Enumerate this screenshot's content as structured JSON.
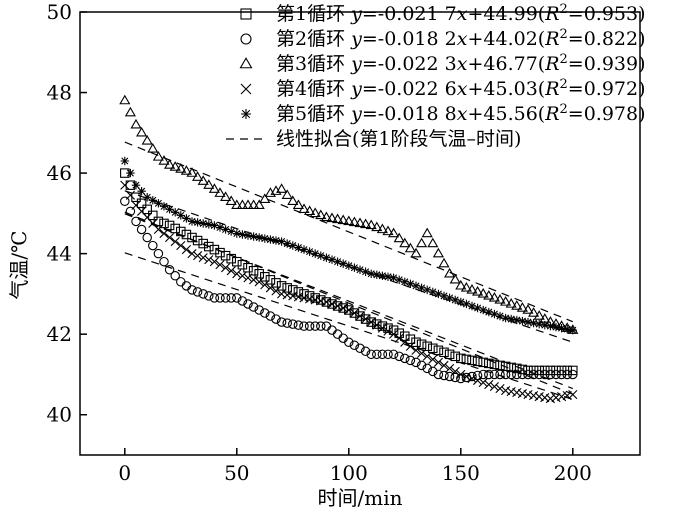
{
  "chart_data": {
    "type": "scatter",
    "xlabel": "时间/min",
    "ylabel": "气温/℃",
    "xlim": [
      -20,
      230
    ],
    "ylim": [
      39,
      50
    ],
    "xticks": [
      0,
      50,
      100,
      150,
      200
    ],
    "yticks": [
      40,
      42,
      44,
      46,
      48,
      50
    ],
    "grid": false,
    "legend_position": "top-right",
    "series": [
      {
        "name": "第1循环",
        "marker": "square",
        "equation": "y=-0.021 7x+44.99",
        "r2": "0.953",
        "slope": -0.0217,
        "intercept": 44.99
      },
      {
        "name": "第2循环",
        "marker": "circle",
        "equation": "y=-0.018 2x+44.02",
        "r2": "0.822",
        "slope": -0.0182,
        "intercept": 44.02
      },
      {
        "name": "第3循环",
        "marker": "triangle",
        "equation": "y=-0.022 3x+46.77",
        "r2": "0.939",
        "slope": -0.0223,
        "intercept": 46.77
      },
      {
        "name": "第4循环",
        "marker": "cross",
        "equation": "y=-0.022 6x+45.03",
        "r2": "0.972",
        "slope": -0.0226,
        "intercept": 45.03
      },
      {
        "name": "第5循环",
        "marker": "asterisk",
        "equation": "y=-0.018 8x+45.56",
        "r2": "0.978",
        "slope": -0.0188,
        "intercept": 45.56
      }
    ],
    "fit_line": {
      "name": "线性拟合(第1阶段气温–时间)",
      "style": "dashed",
      "x_range": [
        0,
        200
      ]
    },
    "profiles": [
      [
        [
          0,
          46.0
        ],
        [
          5,
          45.4
        ],
        [
          10,
          45.1
        ],
        [
          15,
          44.8
        ],
        [
          20,
          44.7
        ],
        [
          30,
          44.4
        ],
        [
          40,
          44.1
        ],
        [
          50,
          43.8
        ],
        [
          60,
          43.5
        ],
        [
          70,
          43.2
        ],
        [
          80,
          43.0
        ],
        [
          90,
          42.8
        ],
        [
          100,
          42.6
        ],
        [
          110,
          42.3
        ],
        [
          120,
          42.1
        ],
        [
          130,
          41.8
        ],
        [
          140,
          41.6
        ],
        [
          150,
          41.4
        ],
        [
          160,
          41.3
        ],
        [
          170,
          41.2
        ],
        [
          180,
          41.1
        ],
        [
          190,
          41.1
        ],
        [
          200,
          41.1
        ]
      ],
      [
        [
          0,
          45.3
        ],
        [
          5,
          44.8
        ],
        [
          10,
          44.4
        ],
        [
          15,
          44.0
        ],
        [
          20,
          43.6
        ],
        [
          25,
          43.3
        ],
        [
          30,
          43.1
        ],
        [
          40,
          42.9
        ],
        [
          50,
          42.9
        ],
        [
          60,
          42.6
        ],
        [
          70,
          42.3
        ],
        [
          80,
          42.2
        ],
        [
          90,
          42.2
        ],
        [
          100,
          41.8
        ],
        [
          110,
          41.5
        ],
        [
          120,
          41.5
        ],
        [
          130,
          41.3
        ],
        [
          140,
          41.0
        ],
        [
          150,
          40.9
        ],
        [
          160,
          41.0
        ],
        [
          170,
          41.0
        ],
        [
          180,
          41.0
        ],
        [
          190,
          41.0
        ],
        [
          200,
          41.0
        ]
      ],
      [
        [
          0,
          47.8
        ],
        [
          5,
          47.2
        ],
        [
          10,
          46.8
        ],
        [
          15,
          46.4
        ],
        [
          20,
          46.2
        ],
        [
          30,
          46.0
        ],
        [
          40,
          45.6
        ],
        [
          50,
          45.2
        ],
        [
          60,
          45.2
        ],
        [
          65,
          45.5
        ],
        [
          70,
          45.6
        ],
        [
          75,
          45.3
        ],
        [
          80,
          45.1
        ],
        [
          90,
          44.9
        ],
        [
          100,
          44.8
        ],
        [
          110,
          44.7
        ],
        [
          120,
          44.5
        ],
        [
          130,
          44.0
        ],
        [
          135,
          44.5
        ],
        [
          140,
          44.0
        ],
        [
          145,
          43.5
        ],
        [
          150,
          43.2
        ],
        [
          160,
          43.0
        ],
        [
          170,
          42.8
        ],
        [
          180,
          42.6
        ],
        [
          190,
          42.3
        ],
        [
          200,
          42.1
        ]
      ],
      [
        [
          0,
          45.7
        ],
        [
          5,
          45.2
        ],
        [
          10,
          44.9
        ],
        [
          15,
          44.6
        ],
        [
          20,
          44.4
        ],
        [
          30,
          44.0
        ],
        [
          40,
          43.8
        ],
        [
          50,
          43.5
        ],
        [
          60,
          43.3
        ],
        [
          70,
          43.0
        ],
        [
          80,
          42.9
        ],
        [
          90,
          42.8
        ],
        [
          100,
          42.6
        ],
        [
          110,
          42.3
        ],
        [
          120,
          42.0
        ],
        [
          130,
          41.6
        ],
        [
          140,
          41.3
        ],
        [
          150,
          41.0
        ],
        [
          160,
          40.8
        ],
        [
          170,
          40.6
        ],
        [
          180,
          40.5
        ],
        [
          190,
          40.4
        ],
        [
          200,
          40.5
        ]
      ],
      [
        [
          0,
          46.3
        ],
        [
          5,
          45.7
        ],
        [
          10,
          45.4
        ],
        [
          20,
          45.1
        ],
        [
          30,
          44.8
        ],
        [
          40,
          44.7
        ],
        [
          50,
          44.5
        ],
        [
          60,
          44.4
        ],
        [
          70,
          44.3
        ],
        [
          80,
          44.1
        ],
        [
          90,
          43.9
        ],
        [
          100,
          43.7
        ],
        [
          110,
          43.5
        ],
        [
          120,
          43.4
        ],
        [
          130,
          43.2
        ],
        [
          140,
          43.0
        ],
        [
          150,
          42.8
        ],
        [
          160,
          42.6
        ],
        [
          170,
          42.4
        ],
        [
          180,
          42.3
        ],
        [
          190,
          42.2
        ],
        [
          200,
          42.1
        ]
      ]
    ]
  }
}
